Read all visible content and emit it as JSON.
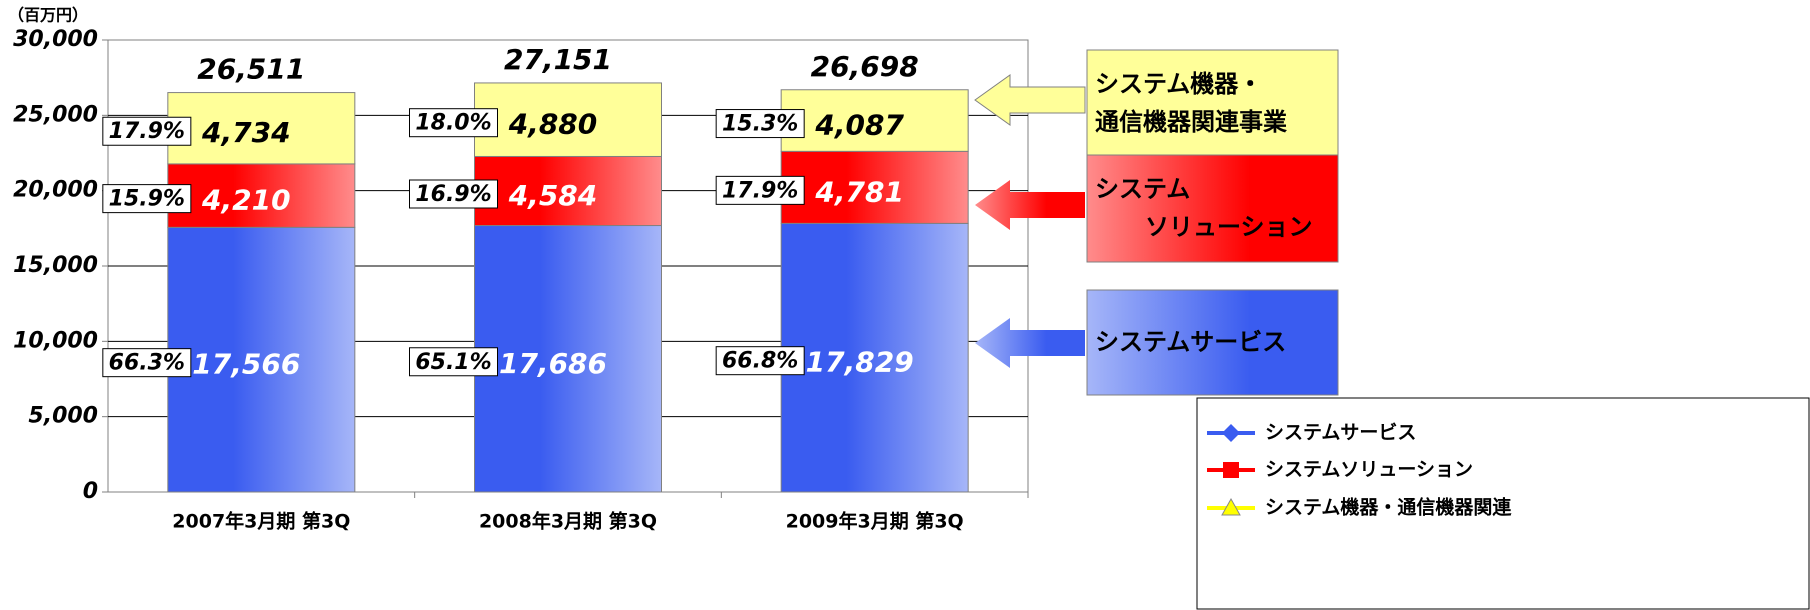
{
  "chart_data": {
    "type": "stacked-bar",
    "y_unit": "（百万円）",
    "categories": [
      "2007年3月期 第3Q",
      "2008年3月期 第3Q",
      "2009年3月期 第3Q"
    ],
    "series": [
      {
        "name": "システムサービス",
        "color": "#3a5cf0",
        "values": [
          17566,
          17686,
          17829
        ],
        "value_labels": [
          "17,566",
          "17,686",
          "17,829"
        ],
        "label_color": "#ffffff",
        "shares": [
          {
            "value": 66.3,
            "label": "66.3%"
          },
          {
            "value": 65.1,
            "label": "65.1%"
          },
          {
            "value": 66.8,
            "label": "66.8%"
          }
        ]
      },
      {
        "name": "システムソリューション",
        "color": "#ff0000",
        "values": [
          4210,
          4584,
          4781
        ],
        "value_labels": [
          "4,210",
          "4,584",
          "4,781"
        ],
        "label_color": "#ffffff",
        "shares": [
          {
            "value": 15.9,
            "label": "15.9%"
          },
          {
            "value": 16.9,
            "label": "16.9%"
          },
          {
            "value": 17.9,
            "label": "17.9%"
          }
        ]
      },
      {
        "name": "システム機器・通信機器関連",
        "color": "#ffff99",
        "values": [
          4734,
          4880,
          4087
        ],
        "value_labels": [
          "4,734",
          "4,880",
          "4,087"
        ],
        "label_color": "#000000",
        "shares": [
          {
            "value": 17.9,
            "label": "17.9%"
          },
          {
            "value": 18.0,
            "label": "18.0%"
          },
          {
            "value": 15.3,
            "label": "15.3%"
          }
        ]
      }
    ],
    "totals": [
      26511,
      27151,
      26698
    ],
    "total_labels": [
      "26,511",
      "27,151",
      "26,698"
    ],
    "callouts": [
      [
        "システム機器・",
        "通信機器関連事業"
      ],
      [
        "システム",
        "ソリューション"
      ],
      [
        "システムサービス"
      ]
    ],
    "ylim": [
      0,
      30000
    ],
    "yticks": [
      0,
      {
        "value": 5000,
        "label": "5,000"
      },
      {
        "value": 10000,
        "label": "10,000"
      },
      {
        "value": 15000,
        "label": "15,000"
      },
      {
        "value": 20000,
        "label": "20,000"
      },
      {
        "value": 25000,
        "label": "25,000"
      },
      {
        "value": 30000,
        "label": "30,000"
      }
    ],
    "grid": true,
    "legend": "bottom-right"
  }
}
